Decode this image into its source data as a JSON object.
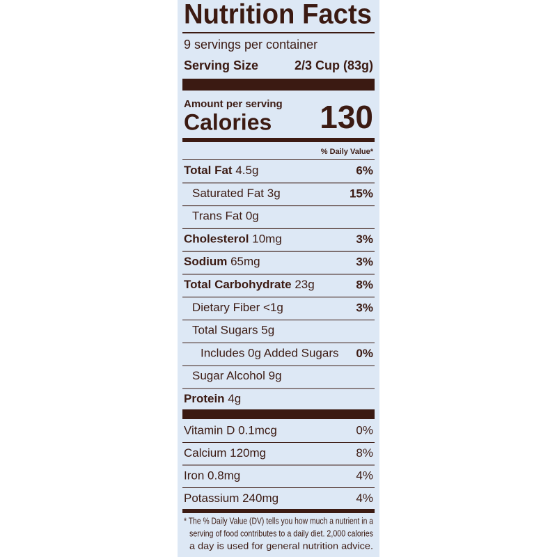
{
  "header": {
    "title": "Nutrition Facts",
    "servings": "9 servings per container",
    "serving_size_label": "Serving Size",
    "serving_size": "2/3 Cup (83g)"
  },
  "calories": {
    "label_small": "Amount per serving",
    "label": "Calories",
    "value": "130"
  },
  "dv_header": "% Daily Value*",
  "nutrients": [
    {
      "name": "Total Fat",
      "amount": "4.5g",
      "dv": "6%",
      "bold": true,
      "indent": 0
    },
    {
      "name": "Saturated Fat",
      "amount": "3g",
      "dv": "15%",
      "bold": false,
      "indent": 1
    },
    {
      "name": "Trans Fat",
      "amount": "0g",
      "bold": false,
      "indent": 1
    },
    {
      "name": "Cholesterol",
      "amount": "10mg",
      "dv": "3%",
      "bold": true,
      "indent": 0
    },
    {
      "name": "Sodium",
      "amount": "65mg",
      "dv": "3%",
      "bold": true,
      "indent": 0
    },
    {
      "name": "Total Carbohydrate",
      "amount": "23g",
      "dv": "8%",
      "bold": true,
      "indent": 0
    },
    {
      "name": "Dietary Fiber",
      "amount": "<1g",
      "dv": "3%",
      "bold": false,
      "indent": 1
    },
    {
      "name": "Total Sugars",
      "amount": "5g",
      "bold": false,
      "indent": 1
    },
    {
      "name": "Includes 0g Added Sugars",
      "dv": "0%",
      "bold": false,
      "indent": 2
    },
    {
      "name": "Sugar Alcohol",
      "amount": "9g",
      "bold": false,
      "indent": 1
    },
    {
      "name": "Protein",
      "amount": "4g",
      "bold": true,
      "indent": 0
    }
  ],
  "vitamins": [
    {
      "name": "Vitamin D 0.1mcg",
      "dv": "0%"
    },
    {
      "name": "Calcium 120mg",
      "dv": "8%"
    },
    {
      "name": "Iron 0.8mg",
      "dv": "4%"
    },
    {
      "name": "Potassium 240mg",
      "dv": "4%"
    }
  ],
  "footnote": [
    "* The % Daily Value (DV) tells you how much a nutrient in a",
    "serving of food contributes to a daily diet. 2,000 calories",
    "a day is used for general nutrition advice."
  ]
}
